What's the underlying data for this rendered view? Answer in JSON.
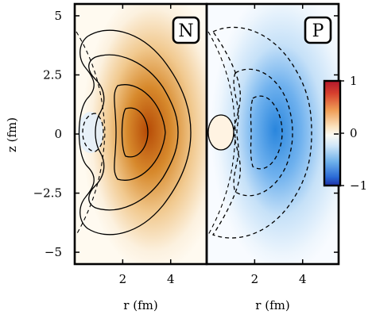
{
  "chart_data": {
    "type": "heatmap",
    "xlabel": "r (fm)",
    "ylabel": "z (fm)",
    "xlim": [
      0,
      5.5
    ],
    "ylim": [
      -5.5,
      5.5
    ],
    "x_ticks": [
      2,
      4
    ],
    "x_tick_labels": [
      "2",
      "4"
    ],
    "y_ticks": [
      5,
      2.5,
      0,
      -2.5,
      -5
    ],
    "y_tick_labels": [
      "5",
      "2.5",
      "0",
      "−2.5",
      "−5"
    ],
    "panels": [
      {
        "label": "N",
        "colormap": "red-white-blue",
        "contours_solid": [
          0.2,
          0.4,
          0.6,
          0.8
        ],
        "contours_dashed": [
          -0.2
        ],
        "peak": {
          "r": 2.4,
          "z": 0,
          "value": 0.9
        }
      },
      {
        "label": "P",
        "colormap": "red-white-blue",
        "contours_solid": [
          0.1
        ],
        "contours_dashed": [
          -0.2,
          -0.4,
          -0.6
        ],
        "peak": {
          "r": 2.3,
          "z": 0,
          "value": -0.7
        }
      }
    ],
    "colorbar": {
      "range": [
        -1,
        1
      ],
      "ticks": [
        1,
        0,
        -1
      ],
      "tick_labels": [
        "1",
        "0",
        "−1"
      ]
    }
  }
}
